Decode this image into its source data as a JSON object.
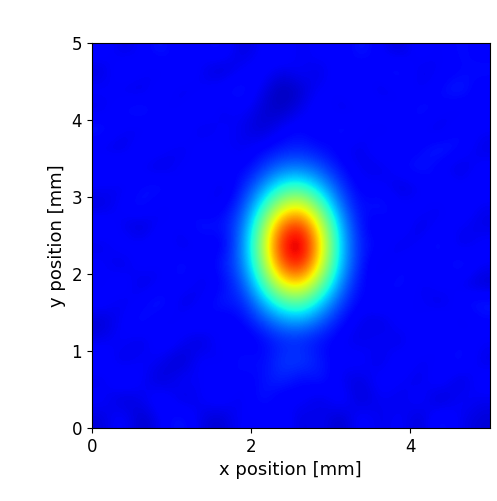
{
  "chart_data": {
    "type": "heatmap",
    "xlabel": "x position [mm]",
    "ylabel": "y position [mm]",
    "xlim": [
      0,
      5
    ],
    "ylim": [
      0,
      5
    ],
    "xticks": [
      0,
      2,
      4
    ],
    "yticks": [
      0,
      1,
      2,
      3,
      4,
      5
    ],
    "color": "jet",
    "color_range": [
      0.1,
      1.0
    ],
    "cells": [
      [
        0.17,
        0.22,
        0.15,
        0.2,
        0.24,
        0.18,
        0.16,
        0.21,
        0.19,
        0.23,
        0.17,
        0.2,
        0.15,
        0.22,
        0.18,
        0.21,
        0.16,
        0.24,
        0.19,
        0.17
      ],
      [
        0.21,
        0.16,
        0.19,
        0.23,
        0.17,
        0.2,
        0.22,
        0.18,
        0.24,
        0.19,
        0.21,
        0.17,
        0.23,
        0.16,
        0.2,
        0.18,
        0.22,
        0.15,
        0.21,
        0.19
      ],
      [
        0.18,
        0.24,
        0.2,
        0.16,
        0.21,
        0.19,
        0.23,
        0.2,
        0.22,
        0.25,
        0.21,
        0.24,
        0.19,
        0.17,
        0.22,
        0.2,
        0.18,
        0.23,
        0.16,
        0.22
      ],
      [
        0.23,
        0.17,
        0.21,
        0.19,
        0.15,
        0.22,
        0.18,
        0.24,
        0.21,
        0.26,
        0.27,
        0.23,
        0.2,
        0.22,
        0.17,
        0.23,
        0.19,
        0.2,
        0.24,
        0.18
      ],
      [
        0.19,
        0.21,
        0.17,
        0.23,
        0.2,
        0.16,
        0.22,
        0.19,
        0.21,
        0.24,
        0.24,
        0.22,
        0.2,
        0.18,
        0.21,
        0.17,
        0.23,
        0.19,
        0.22,
        0.2
      ],
      [
        0.16,
        0.2,
        0.24,
        0.18,
        0.21,
        0.23,
        0.19,
        0.21,
        0.26,
        0.33,
        0.35,
        0.29,
        0.22,
        0.19,
        0.17,
        0.22,
        0.19,
        0.24,
        0.18,
        0.21
      ],
      [
        0.22,
        0.18,
        0.21,
        0.25,
        0.17,
        0.2,
        0.24,
        0.23,
        0.35,
        0.48,
        0.52,
        0.4,
        0.27,
        0.2,
        0.23,
        0.19,
        0.21,
        0.17,
        0.22,
        0.24
      ],
      [
        0.19,
        0.23,
        0.17,
        0.2,
        0.22,
        0.18,
        0.21,
        0.27,
        0.45,
        0.68,
        0.73,
        0.55,
        0.33,
        0.21,
        0.2,
        0.24,
        0.18,
        0.22,
        0.19,
        0.16
      ],
      [
        0.21,
        0.17,
        0.22,
        0.19,
        0.24,
        0.2,
        0.23,
        0.3,
        0.54,
        0.84,
        0.92,
        0.67,
        0.38,
        0.23,
        0.18,
        0.21,
        0.23,
        0.19,
        0.25,
        0.2
      ],
      [
        0.18,
        0.22,
        0.2,
        0.23,
        0.17,
        0.21,
        0.19,
        0.31,
        0.57,
        0.9,
        0.98,
        0.71,
        0.39,
        0.23,
        0.22,
        0.18,
        0.2,
        0.24,
        0.17,
        0.21
      ],
      [
        0.23,
        0.19,
        0.16,
        0.21,
        0.2,
        0.24,
        0.22,
        0.29,
        0.53,
        0.82,
        0.89,
        0.65,
        0.37,
        0.22,
        0.19,
        0.23,
        0.17,
        0.21,
        0.2,
        0.18
      ],
      [
        0.17,
        0.21,
        0.24,
        0.18,
        0.22,
        0.19,
        0.2,
        0.26,
        0.43,
        0.63,
        0.69,
        0.52,
        0.31,
        0.21,
        0.24,
        0.2,
        0.22,
        0.18,
        0.23,
        0.19
      ],
      [
        0.2,
        0.18,
        0.22,
        0.24,
        0.19,
        0.23,
        0.17,
        0.23,
        0.33,
        0.45,
        0.48,
        0.38,
        0.26,
        0.2,
        0.21,
        0.17,
        0.19,
        0.23,
        0.2,
        0.22
      ],
      [
        0.22,
        0.24,
        0.19,
        0.17,
        0.21,
        0.2,
        0.23,
        0.2,
        0.25,
        0.31,
        0.32,
        0.28,
        0.22,
        0.19,
        0.18,
        0.22,
        0.24,
        0.2,
        0.17,
        0.21
      ],
      [
        0.19,
        0.17,
        0.23,
        0.21,
        0.18,
        0.22,
        0.2,
        0.19,
        0.21,
        0.23,
        0.24,
        0.22,
        0.2,
        0.18,
        0.23,
        0.19,
        0.21,
        0.25,
        0.22,
        0.18
      ],
      [
        0.24,
        0.2,
        0.18,
        0.22,
        0.23,
        0.17,
        0.21,
        0.19,
        0.16,
        0.2,
        0.22,
        0.19,
        0.24,
        0.21,
        0.18,
        0.22,
        0.2,
        0.17,
        0.23,
        0.2
      ],
      [
        0.18,
        0.22,
        0.25,
        0.19,
        0.2,
        0.24,
        0.18,
        0.21,
        0.17,
        0.15,
        0.19,
        0.22,
        0.18,
        0.2,
        0.23,
        0.19,
        0.24,
        0.21,
        0.18,
        0.22
      ],
      [
        0.21,
        0.19,
        0.17,
        0.23,
        0.18,
        0.2,
        0.22,
        0.24,
        0.19,
        0.14,
        0.16,
        0.21,
        0.2,
        0.23,
        0.17,
        0.21,
        0.19,
        0.22,
        0.25,
        0.19
      ],
      [
        0.17,
        0.23,
        0.21,
        0.18,
        0.24,
        0.19,
        0.16,
        0.2,
        0.22,
        0.18,
        0.21,
        0.17,
        0.23,
        0.19,
        0.22,
        0.24,
        0.18,
        0.2,
        0.21,
        0.23
      ],
      [
        0.22,
        0.18,
        0.2,
        0.24,
        0.19,
        0.21,
        0.23,
        0.17,
        0.2,
        0.23,
        0.18,
        0.22,
        0.19,
        0.24,
        0.2,
        0.17,
        0.22,
        0.19,
        0.23,
        0.2
      ]
    ]
  }
}
